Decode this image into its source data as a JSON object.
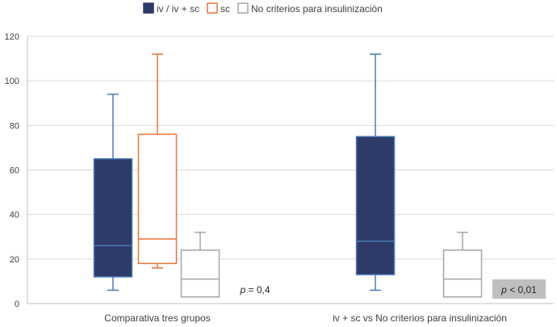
{
  "chart_data": {
    "type": "box",
    "title": "",
    "xlabel": "",
    "ylabel": "",
    "ylim": [
      0,
      120
    ],
    "yticks": [
      0,
      20,
      40,
      60,
      80,
      100,
      120
    ],
    "grid": true,
    "legend_position": "top-center",
    "categories": [
      "Comparativa tres grupos",
      "iv + sc vs No criterios para insulinización"
    ],
    "series": [
      {
        "name": "iv / iv + sc",
        "color": "#2e3a67",
        "stroke": "#4a7ab8",
        "filled": true,
        "boxes": [
          {
            "category": 0,
            "whisker_low": 6,
            "q1": 12,
            "median": 26,
            "q3": 65,
            "whisker_high": 94
          },
          {
            "category": 1,
            "whisker_low": 6,
            "q1": 13,
            "median": 28,
            "q3": 75,
            "whisker_high": 112
          }
        ]
      },
      {
        "name": "sc",
        "color": "#ffffff",
        "stroke": "#e8743b",
        "filled": false,
        "boxes": [
          {
            "category": 0,
            "whisker_low": 16,
            "q1": 18,
            "median": 29,
            "q3": 76,
            "whisker_high": 112
          }
        ]
      },
      {
        "name": "No criterios para insulinización",
        "color": "#ffffff",
        "stroke": "#a6a6a6",
        "filled": false,
        "boxes": [
          {
            "category": 0,
            "whisker_low": 3,
            "q1": 3,
            "median": 11,
            "q3": 24,
            "whisker_high": 32
          },
          {
            "category": 1,
            "whisker_low": 3,
            "q1": 3,
            "median": 11,
            "q3": 24,
            "whisker_high": 32
          }
        ]
      }
    ],
    "annotations": [
      {
        "category": 0,
        "p_symbol": "p",
        "rest": " = 0,4",
        "highlight": false
      },
      {
        "category": 1,
        "p_symbol": "p",
        "rest": " < 0,01",
        "highlight": true
      }
    ]
  }
}
